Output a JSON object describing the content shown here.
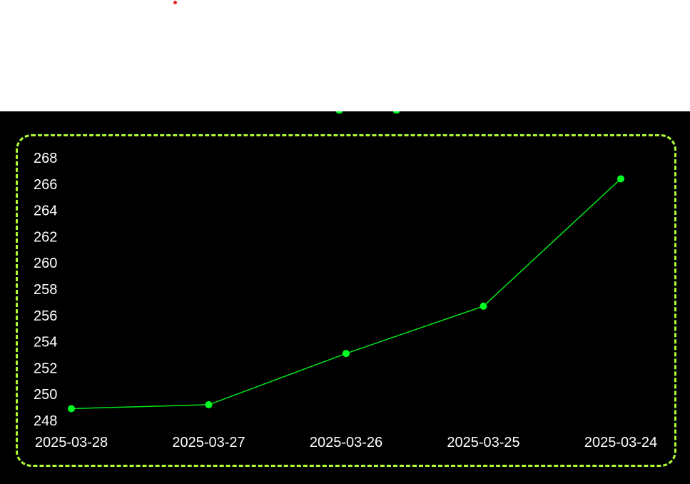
{
  "colors": {
    "page_background": "#ffffff",
    "chart_background": "#000000",
    "frame_border": "#adff2f",
    "line": "#00e61a",
    "marker": "#00ff22",
    "tick_text": "#ffffff",
    "red_dot": "#e8201c"
  },
  "chart_data": {
    "type": "line",
    "title": "",
    "xlabel": "",
    "ylabel": "",
    "x": [
      "2025-03-28",
      "2025-03-27",
      "2025-03-26",
      "2025-03-25",
      "2025-03-24"
    ],
    "series": [
      {
        "values": [
          248.9,
          249.2,
          253.1,
          256.7,
          266.4
        ]
      }
    ],
    "ylim": [
      248,
      268
    ],
    "y_ticks": [
      248,
      250,
      252,
      254,
      256,
      258,
      260,
      262,
      264,
      266,
      268
    ],
    "grid": false,
    "legend": "none",
    "markers": true
  }
}
